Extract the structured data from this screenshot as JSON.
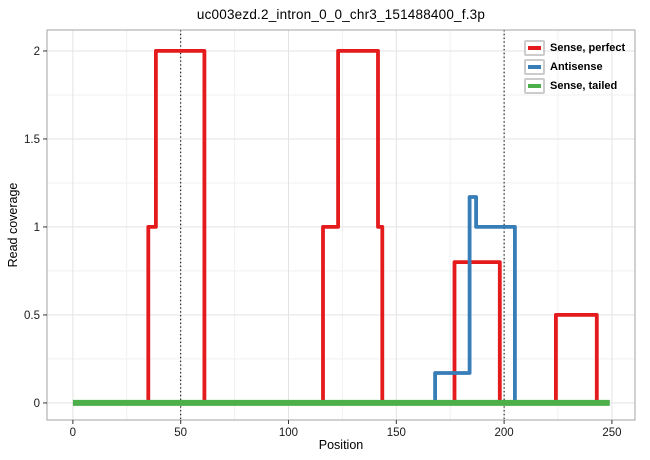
{
  "chart_data": {
    "type": "line",
    "subtype": "step-coverage",
    "title": "uc003ezd.2_intron_0_0_chr3_151488400_f.3p",
    "xlabel": "Position",
    "ylabel": "Read coverage",
    "x_ticks": [
      0,
      50,
      100,
      150,
      200,
      250
    ],
    "y_ticks": [
      0,
      0.5,
      1,
      1.5,
      2
    ],
    "xlim": [
      -12,
      260.7
    ],
    "ylim": [
      -0.097,
      2.119
    ],
    "grid": "major+minor",
    "legend_position": "top-right",
    "vlines": {
      "style": "dotted",
      "color": "#000000",
      "x": [
        50,
        200
      ]
    },
    "series": [
      {
        "name": "Sense, perfect",
        "color": "#e41a1c",
        "linewidth": 3.8,
        "points": [
          [
            35,
            0
          ],
          [
            35,
            1
          ],
          [
            38.5,
            1
          ],
          [
            38.5,
            2
          ],
          [
            61,
            2
          ],
          [
            61,
            0
          ],
          [
            116,
            0
          ],
          [
            116,
            1
          ],
          [
            123,
            1
          ],
          [
            123,
            2
          ],
          [
            141.5,
            2
          ],
          [
            141.5,
            1
          ],
          [
            143.5,
            1
          ],
          [
            143.5,
            0
          ],
          [
            177,
            0
          ],
          [
            177,
            0.8
          ],
          [
            198,
            0.8
          ],
          [
            198,
            0
          ],
          [
            224,
            0
          ],
          [
            224,
            0.5
          ],
          [
            243,
            0.5
          ],
          [
            243,
            0
          ]
        ]
      },
      {
        "name": "Antisense",
        "color": "#377eb8",
        "linewidth": 3.8,
        "points": [
          [
            168,
            0
          ],
          [
            168,
            0.17
          ],
          [
            184,
            0.17
          ],
          [
            184,
            1.17
          ],
          [
            187,
            1.17
          ],
          [
            187,
            1
          ],
          [
            205,
            1
          ],
          [
            205,
            0
          ]
        ]
      },
      {
        "name": "Sense, tailed",
        "color": "#4daf4a",
        "linewidth": 6,
        "points": [
          [
            0,
            0
          ],
          [
            249,
            0
          ]
        ]
      }
    ]
  }
}
